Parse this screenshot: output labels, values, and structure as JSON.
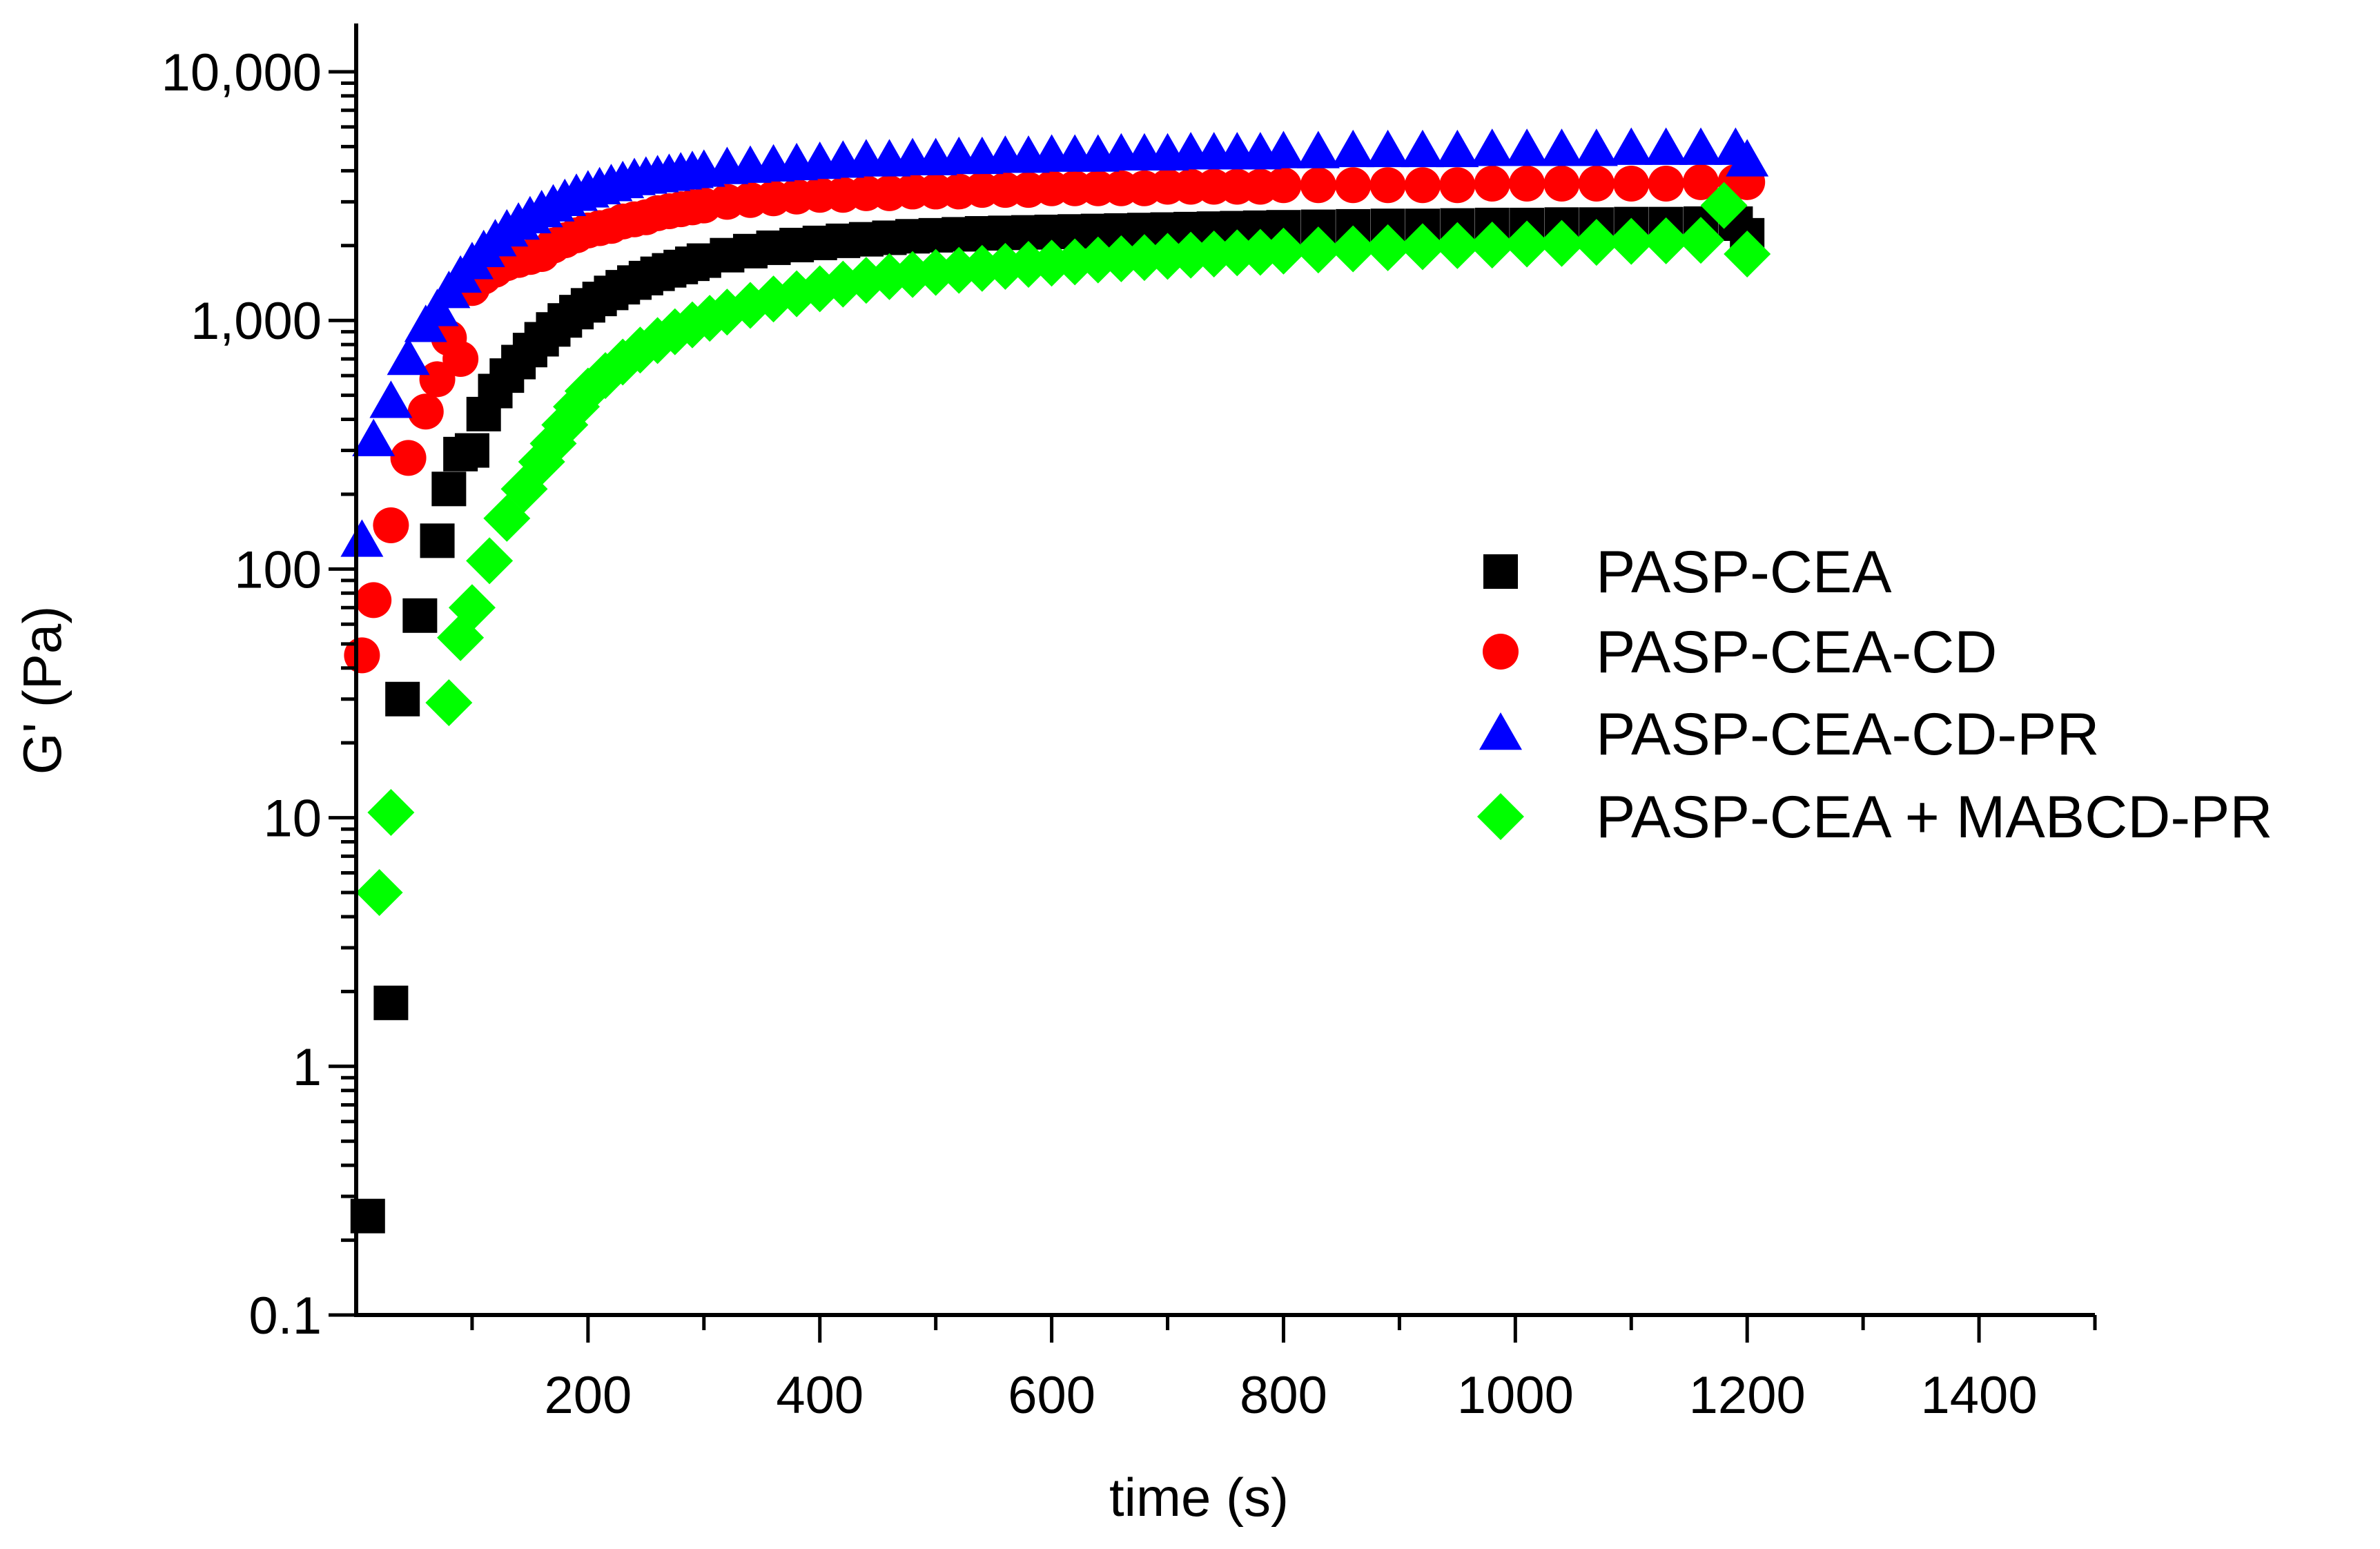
{
  "chart_data": {
    "type": "scatter",
    "title": "",
    "xlabel": "time (s)",
    "ylabel": "G' (Pa)",
    "xlim": [
      0,
      1500
    ],
    "ylim": [
      0.1,
      20000
    ],
    "yscale": "log",
    "grid": false,
    "legend_position": "right",
    "x_ticks": [
      200,
      400,
      600,
      800,
      1000,
      1200,
      1400
    ],
    "x_tick_labels": [
      "200",
      "400",
      "600",
      "800",
      "1000",
      "1200",
      "1400"
    ],
    "x_minor_ticks": [
      100,
      300,
      500,
      700,
      900,
      1100,
      1300,
      1500
    ],
    "y_ticks": [
      0.1,
      1,
      10,
      100,
      1000,
      10000
    ],
    "y_tick_labels": [
      "0.1",
      "1",
      "10",
      "100",
      "1,000",
      "10,000"
    ],
    "series": [
      {
        "name": "PASP-CEA",
        "marker": "square",
        "color": "#000000",
        "x": [
          10,
          30,
          40,
          55,
          70,
          80,
          90,
          100,
          110,
          120,
          130,
          140,
          150,
          160,
          170,
          180,
          190,
          200,
          210,
          220,
          230,
          240,
          250,
          260,
          270,
          280,
          290,
          300,
          320,
          340,
          360,
          380,
          400,
          420,
          440,
          460,
          480,
          500,
          520,
          540,
          560,
          580,
          600,
          620,
          640,
          660,
          680,
          700,
          720,
          740,
          760,
          780,
          800,
          830,
          860,
          890,
          920,
          950,
          980,
          1010,
          1040,
          1070,
          1100,
          1130,
          1160,
          1190,
          1200
        ],
        "y": [
          0.25,
          1.8,
          30,
          65,
          130,
          210,
          290,
          300,
          420,
          520,
          600,
          680,
          760,
          840,
          920,
          1000,
          1080,
          1150,
          1220,
          1290,
          1360,
          1420,
          1480,
          1540,
          1590,
          1640,
          1690,
          1740,
          1830,
          1900,
          1960,
          2010,
          2050,
          2090,
          2120,
          2150,
          2180,
          2200,
          2220,
          2240,
          2250,
          2260,
          2270,
          2280,
          2290,
          2300,
          2310,
          2320,
          2330,
          2340,
          2350,
          2360,
          2370,
          2380,
          2390,
          2400,
          2400,
          2410,
          2420,
          2420,
          2430,
          2430,
          2440,
          2440,
          2450,
          2450,
          2200
        ]
      },
      {
        "name": "PASP-CEA-CD",
        "marker": "circle",
        "color": "#ff0000",
        "x": [
          5,
          15,
          30,
          45,
          60,
          70,
          80,
          90,
          100,
          110,
          120,
          130,
          140,
          150,
          160,
          170,
          180,
          190,
          200,
          210,
          220,
          230,
          240,
          250,
          260,
          270,
          280,
          290,
          300,
          320,
          340,
          360,
          380,
          400,
          420,
          440,
          460,
          480,
          500,
          520,
          540,
          560,
          580,
          600,
          620,
          640,
          660,
          680,
          700,
          720,
          740,
          760,
          780,
          800,
          830,
          860,
          890,
          920,
          950,
          980,
          1010,
          1040,
          1070,
          1100,
          1130,
          1160,
          1190,
          1200
        ],
        "y": [
          45,
          75,
          150,
          280,
          430,
          580,
          850,
          700,
          1350,
          1500,
          1600,
          1700,
          1750,
          1800,
          1850,
          2000,
          2100,
          2200,
          2300,
          2350,
          2400,
          2500,
          2550,
          2600,
          2700,
          2750,
          2800,
          2850,
          2900,
          3000,
          3050,
          3100,
          3150,
          3200,
          3200,
          3250,
          3250,
          3300,
          3300,
          3300,
          3350,
          3350,
          3350,
          3400,
          3400,
          3400,
          3400,
          3400,
          3450,
          3450,
          3450,
          3450,
          3450,
          3500,
          3500,
          3500,
          3500,
          3500,
          3500,
          3550,
          3550,
          3550,
          3550,
          3550,
          3550,
          3600,
          3600,
          3600
        ]
      },
      {
        "name": "PASP-CEA-CD-PR",
        "marker": "triangle",
        "color": "#0000ff",
        "x": [
          5,
          15,
          30,
          45,
          60,
          70,
          80,
          90,
          100,
          110,
          120,
          130,
          140,
          150,
          160,
          170,
          180,
          190,
          200,
          210,
          220,
          230,
          240,
          250,
          260,
          270,
          280,
          290,
          300,
          320,
          340,
          360,
          380,
          400,
          420,
          440,
          460,
          480,
          500,
          520,
          540,
          560,
          580,
          600,
          620,
          640,
          660,
          680,
          700,
          720,
          740,
          760,
          780,
          800,
          830,
          860,
          890,
          920,
          950,
          980,
          1010,
          1040,
          1070,
          1100,
          1130,
          1160,
          1190,
          1200
        ],
        "y": [
          130,
          330,
          470,
          700,
          950,
          1100,
          1300,
          1500,
          1700,
          1900,
          2100,
          2300,
          2450,
          2600,
          2750,
          2900,
          3050,
          3200,
          3300,
          3400,
          3500,
          3600,
          3700,
          3750,
          3800,
          3850,
          3900,
          3950,
          4000,
          4100,
          4150,
          4200,
          4250,
          4300,
          4350,
          4400,
          4400,
          4450,
          4450,
          4500,
          4500,
          4550,
          4550,
          4600,
          4600,
          4600,
          4650,
          4650,
          4650,
          4700,
          4700,
          4700,
          4700,
          4750,
          4750,
          4800,
          4800,
          4800,
          4800,
          4850,
          4850,
          4850,
          4850,
          4900,
          4900,
          4900,
          4900,
          4400
        ]
      },
      {
        "name": "PASP-CEA + MABCD-PR",
        "marker": "diamond",
        "color": "#00ff00",
        "x": [
          20,
          30,
          80,
          90,
          100,
          115,
          130,
          145,
          160,
          170,
          180,
          190,
          200,
          215,
          230,
          245,
          260,
          275,
          290,
          305,
          320,
          340,
          360,
          380,
          400,
          420,
          440,
          460,
          480,
          500,
          520,
          540,
          560,
          580,
          600,
          620,
          640,
          660,
          680,
          700,
          720,
          740,
          760,
          780,
          800,
          830,
          860,
          890,
          920,
          950,
          980,
          1010,
          1040,
          1070,
          1100,
          1130,
          1160,
          1180,
          1200
        ],
        "y": [
          5,
          10.5,
          29,
          53,
          70,
          108,
          160,
          210,
          270,
          320,
          380,
          450,
          520,
          600,
          680,
          760,
          830,
          900,
          960,
          1020,
          1080,
          1150,
          1220,
          1280,
          1340,
          1400,
          1450,
          1500,
          1530,
          1560,
          1590,
          1620,
          1650,
          1680,
          1700,
          1720,
          1750,
          1770,
          1790,
          1810,
          1830,
          1850,
          1870,
          1880,
          1900,
          1920,
          1940,
          1960,
          1980,
          2000,
          2010,
          2030,
          2040,
          2060,
          2080,
          2090,
          2100,
          2900,
          1850
        ]
      }
    ]
  }
}
